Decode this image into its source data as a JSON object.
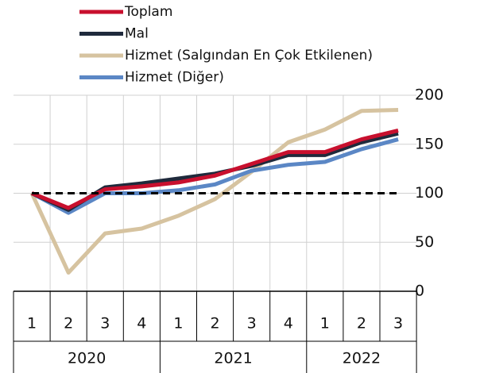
{
  "chart_data": {
    "type": "line",
    "year_groups": [
      {
        "label": "2020",
        "quarters": [
          "1",
          "2",
          "3",
          "4"
        ]
      },
      {
        "label": "2021",
        "quarters": [
          "1",
          "2",
          "3",
          "4"
        ]
      },
      {
        "label": "2022",
        "quarters": [
          "1",
          "2",
          "3"
        ]
      }
    ],
    "series": [
      {
        "name": "Toplam",
        "color": "#c8102e",
        "values": [
          100,
          85,
          104,
          107,
          111,
          118,
          130,
          142,
          142,
          155,
          164
        ]
      },
      {
        "name": "Mal",
        "color": "#1f2a3c",
        "values": [
          100,
          83,
          106,
          110,
          115,
          120,
          128,
          139,
          139,
          152,
          161
        ]
      },
      {
        "name": "Hizmet (Salgından En Çok Etkilenen)",
        "color": "#d6c3a0",
        "values": [
          100,
          19,
          59,
          64,
          77,
          94,
          122,
          152,
          165,
          184,
          185
        ]
      },
      {
        "name": "Hizmet (Diğer)",
        "color": "#5b87c5",
        "values": [
          100,
          80,
          100,
          100,
          103,
          109,
          123,
          129,
          132,
          145,
          155
        ]
      }
    ],
    "reference_line": 100,
    "ylim": [
      0,
      200
    ],
    "yticks": [
      0,
      50,
      100,
      150,
      200
    ],
    "grid": true
  }
}
